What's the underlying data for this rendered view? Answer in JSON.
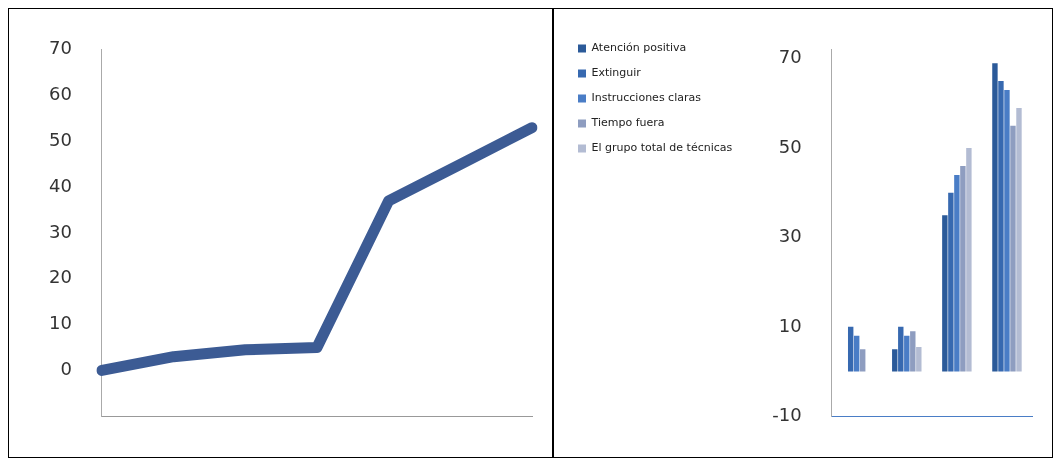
{
  "chart_data": [
    {
      "type": "line",
      "categories": [
        null,
        null,
        null,
        null,
        null,
        null,
        null
      ],
      "values": [
        0,
        3,
        4.5,
        5,
        37,
        45,
        53
      ],
      "color": "#3c5b94",
      "ylim": [
        -10,
        70
      ],
      "yticks": [
        0,
        10,
        20,
        30,
        40,
        50,
        60,
        70
      ],
      "grid": false,
      "legend": false,
      "marker": "none"
    },
    {
      "type": "bar",
      "categories": [
        null,
        null,
        null,
        null
      ],
      "series": [
        {
          "name": "Atención positiva",
          "color": "#2b5a99",
          "values": [
            null,
            5,
            35,
            69
          ]
        },
        {
          "name": "Extinguir",
          "color": "#3769b0",
          "values": [
            10,
            10,
            40,
            65
          ]
        },
        {
          "name": "Instrucciones claras",
          "color": "#4a7dc6",
          "values": [
            8,
            8,
            44,
            63
          ]
        },
        {
          "name": "Tiempo fuera",
          "color": "#8e9dc0",
          "values": [
            5,
            9,
            46,
            55
          ]
        },
        {
          "name": "El grupo total de técnicas",
          "color": "#b3bcd3",
          "values": [
            null,
            5.5,
            50,
            59
          ]
        }
      ],
      "ylim": [
        -10,
        72
      ],
      "yticks": [
        -10,
        10,
        30,
        50,
        70
      ],
      "grid": false,
      "legend": "left"
    }
  ]
}
